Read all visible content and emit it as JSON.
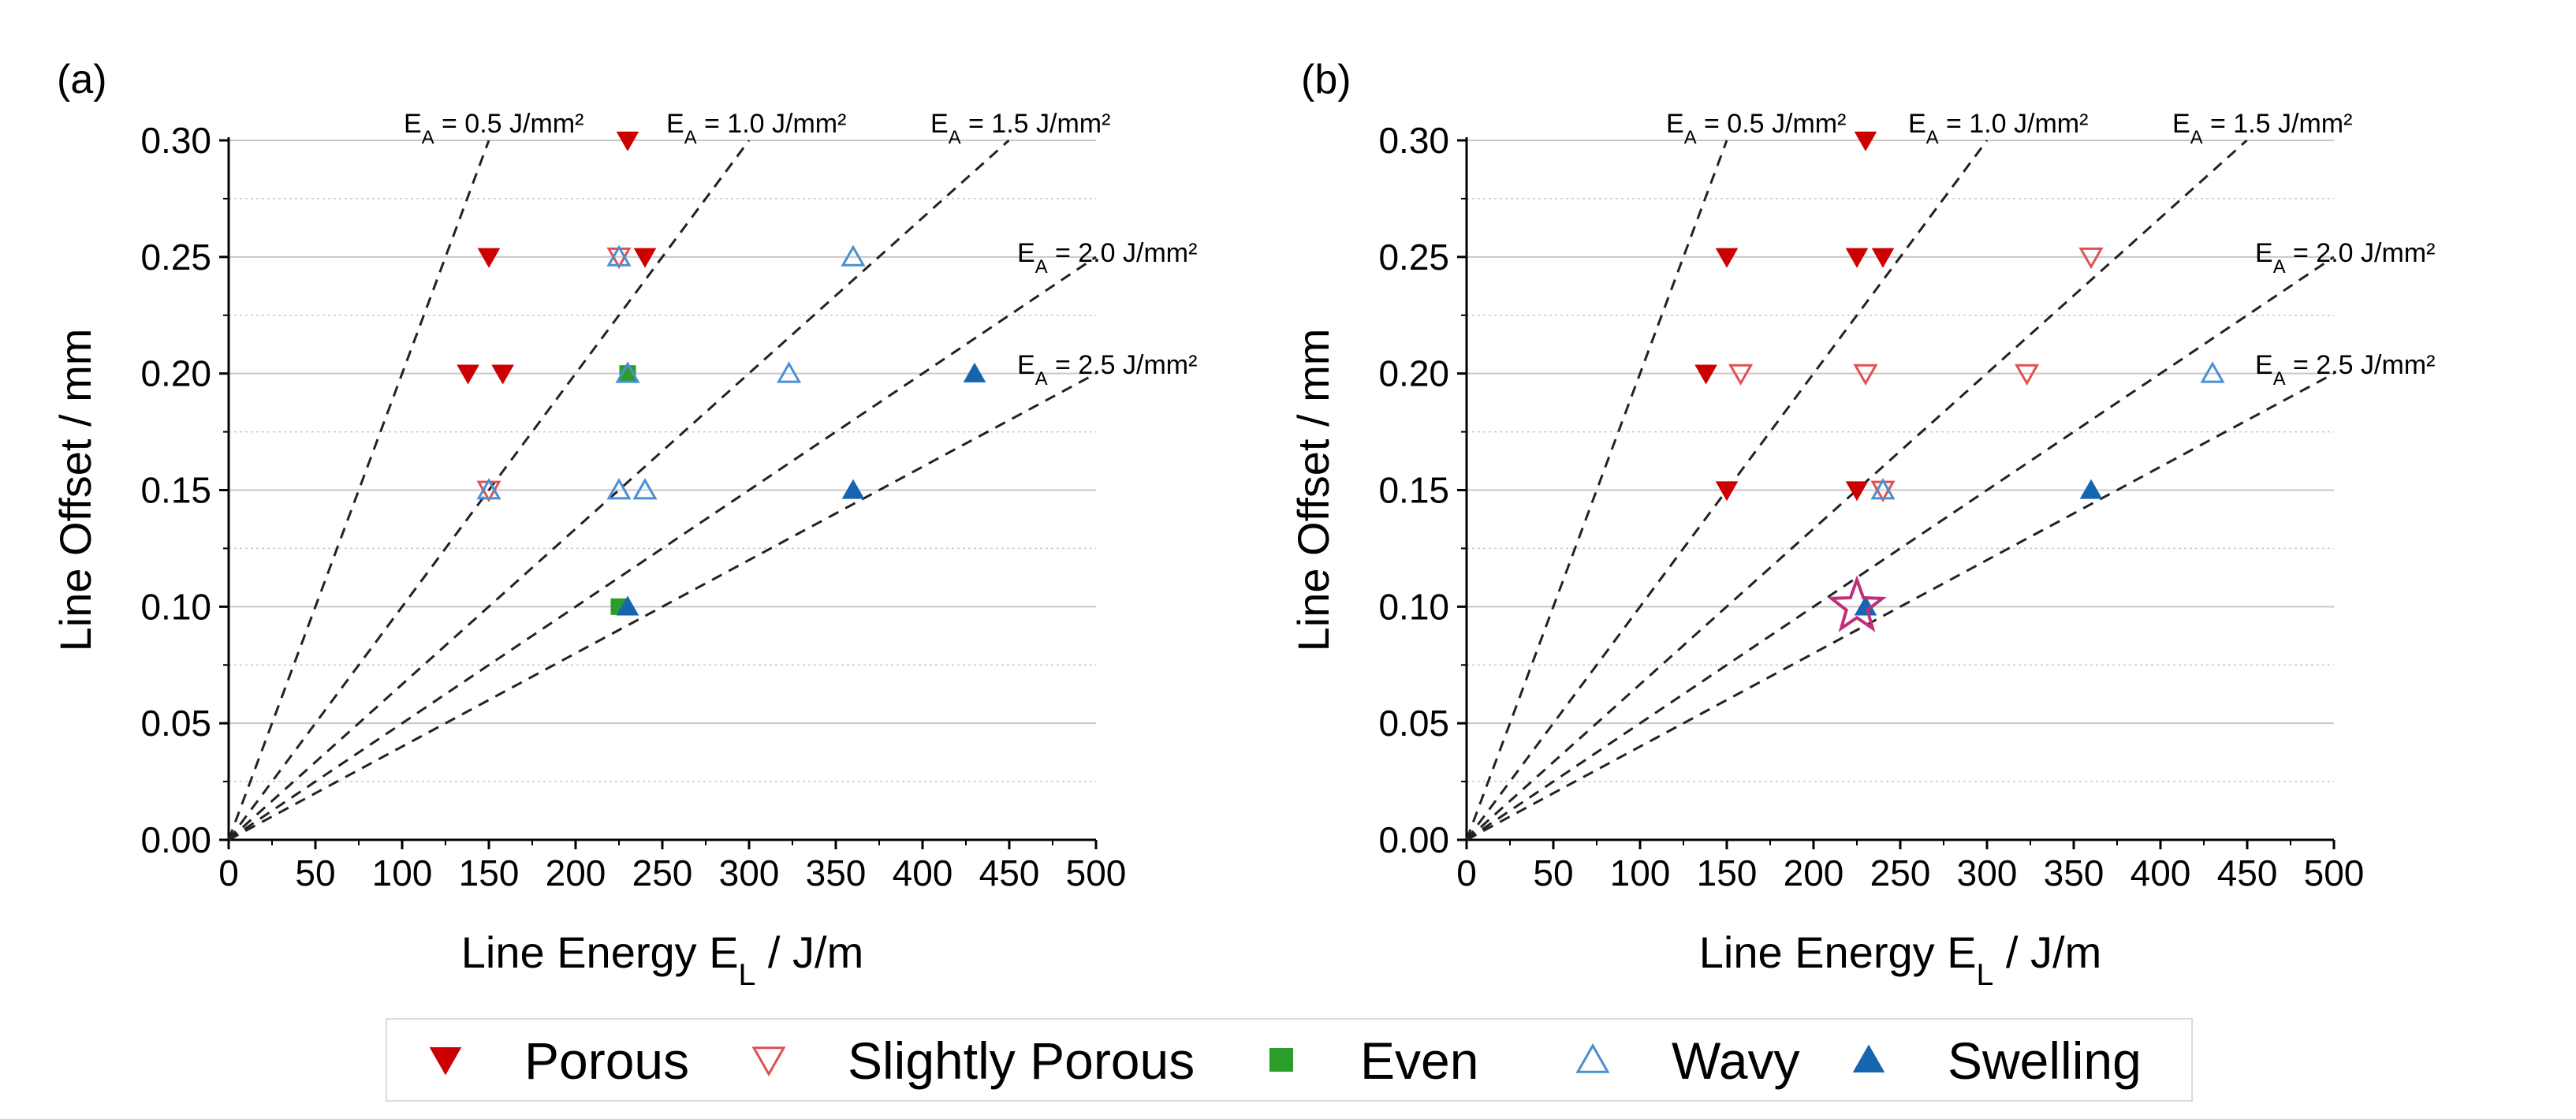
{
  "chart_data": [
    {
      "type": "scatter",
      "panel_label": "(a)",
      "xlabel_main": "Line Energy E",
      "xlabel_sub": "L",
      "xlabel_unit": " / J/m",
      "ylabel": "Line Offset / mm",
      "xlim": [
        0,
        500
      ],
      "ylim": [
        0,
        0.3
      ],
      "xticks": [
        "0",
        "50",
        "100",
        "150",
        "200",
        "250",
        "300",
        "350",
        "400",
        "450",
        "500"
      ],
      "yticks": [
        "0.00",
        "0.05",
        "0.10",
        "0.15",
        "0.20",
        "0.25",
        "0.30"
      ],
      "grid": "horizontal",
      "reference_lines": [
        {
          "label_main": "E",
          "label_sub": "A",
          "label_val": " = 0.5 J/mm²",
          "slope": 0.002
        },
        {
          "label_main": "E",
          "label_sub": "A",
          "label_val": " = 1.0 J/mm²",
          "slope": 0.001
        },
        {
          "label_main": "E",
          "label_sub": "A",
          "label_val": " = 1.5 J/mm²",
          "slope": 0.000667
        },
        {
          "label_main": "E",
          "label_sub": "A",
          "label_val": " = 2.0 J/mm²",
          "slope": 0.0005
        },
        {
          "label_main": "E",
          "label_sub": "A",
          "label_val": " = 2.5 J/mm²",
          "slope": 0.0004
        }
      ],
      "series": [
        {
          "name": "Porous",
          "points": [
            [
              230,
              0.3
            ],
            [
              150,
              0.25
            ],
            [
              240,
              0.25
            ],
            [
              138,
              0.2
            ],
            [
              158,
              0.2
            ]
          ]
        },
        {
          "name": "Slightly Porous",
          "points": [
            [
              225,
              0.25
            ],
            [
              150,
              0.15
            ]
          ]
        },
        {
          "name": "Even",
          "points": [
            [
              230,
              0.2
            ],
            [
              225,
              0.1
            ]
          ]
        },
        {
          "name": "Wavy",
          "points": [
            [
              225,
              0.25
            ],
            [
              360,
              0.25
            ],
            [
              230,
              0.2
            ],
            [
              323,
              0.2
            ],
            [
              150,
              0.15
            ],
            [
              225,
              0.15
            ],
            [
              240,
              0.15
            ]
          ]
        },
        {
          "name": "Swelling",
          "points": [
            [
              430,
              0.2
            ],
            [
              360,
              0.15
            ],
            [
              230,
              0.1
            ]
          ]
        }
      ]
    },
    {
      "type": "scatter",
      "panel_label": "(b)",
      "xlabel_main": "Line Energy E",
      "xlabel_sub": "L",
      "xlabel_unit": " / J/m",
      "ylabel": "Line Offset / mm",
      "xlim": [
        0,
        500
      ],
      "ylim": [
        0,
        0.3
      ],
      "xticks": [
        "0",
        "50",
        "100",
        "150",
        "200",
        "250",
        "300",
        "350",
        "400",
        "450",
        "500"
      ],
      "yticks": [
        "0.00",
        "0.05",
        "0.10",
        "0.15",
        "0.20",
        "0.25",
        "0.30"
      ],
      "grid": "horizontal",
      "reference_lines": [
        {
          "label_main": "E",
          "label_sub": "A",
          "label_val": " = 0.5 J/mm²",
          "slope": 0.002
        },
        {
          "label_main": "E",
          "label_sub": "A",
          "label_val": " = 1.0 J/mm²",
          "slope": 0.001
        },
        {
          "label_main": "E",
          "label_sub": "A",
          "label_val": " = 1.5 J/mm²",
          "slope": 0.000667
        },
        {
          "label_main": "E",
          "label_sub": "A",
          "label_val": " = 2.0 J/mm²",
          "slope": 0.0005
        },
        {
          "label_main": "E",
          "label_sub": "A",
          "label_val": " = 2.5 J/mm²",
          "slope": 0.0004
        }
      ],
      "series": [
        {
          "name": "Porous",
          "points": [
            [
              230,
              0.3
            ],
            [
              150,
              0.25
            ],
            [
              225,
              0.25
            ],
            [
              240,
              0.25
            ],
            [
              138,
              0.2
            ],
            [
              150,
              0.15
            ],
            [
              225,
              0.15
            ]
          ]
        },
        {
          "name": "Slightly Porous",
          "points": [
            [
              360,
              0.25
            ],
            [
              158,
              0.2
            ],
            [
              230,
              0.2
            ],
            [
              323,
              0.2
            ],
            [
              240,
              0.15
            ]
          ]
        },
        {
          "name": "Even",
          "points": []
        },
        {
          "name": "Wavy",
          "points": [
            [
              430,
              0.2
            ],
            [
              240,
              0.15
            ]
          ]
        },
        {
          "name": "Swelling",
          "points": [
            [
              360,
              0.15
            ],
            [
              230,
              0.1
            ]
          ]
        }
      ],
      "highlight": {
        "marker": "star",
        "point": [
          225,
          0.1
        ],
        "color": "#c0307a"
      }
    }
  ],
  "legend": {
    "placement": "bottom",
    "items": [
      {
        "label": "Porous",
        "marker": "triangle-down-filled",
        "color": "#cc0000"
      },
      {
        "label": "Slightly Porous",
        "marker": "triangle-down-open",
        "color": "#e05050"
      },
      {
        "label": "Even",
        "marker": "square-filled",
        "color": "#2a9d2a"
      },
      {
        "label": "Wavy",
        "marker": "triangle-up-open",
        "color": "#4a90d0"
      },
      {
        "label": "Swelling",
        "marker": "triangle-up-filled",
        "color": "#1565b0"
      }
    ]
  },
  "colors": {
    "porous": "#cc0000",
    "slightly_porous": "#e05050",
    "even": "#2a9d2a",
    "wavy": "#4a90d0",
    "swelling": "#1565b0",
    "highlight_star": "#c0307a",
    "grid": "#c8c8c8",
    "reference_line": "#222222"
  }
}
